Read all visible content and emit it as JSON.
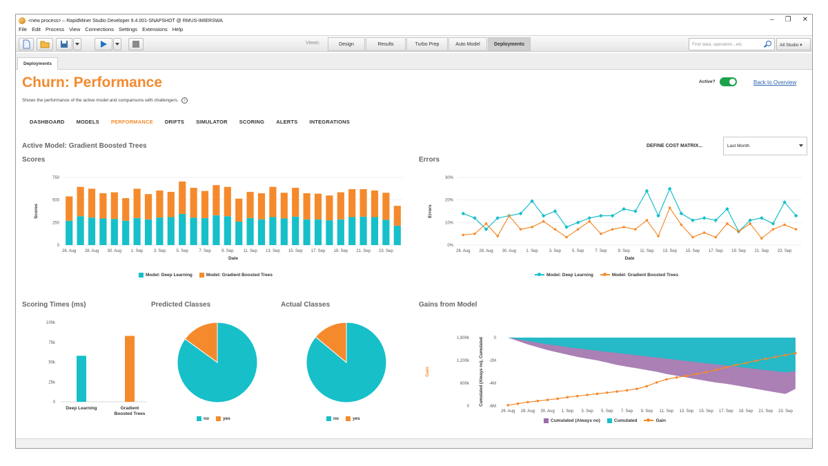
{
  "window": {
    "title": "<new process> – RapidMiner Studio Developer 9.4.001-SNAPSHOT @ RMUS-IMIERSWA",
    "controls": [
      "–",
      "❐",
      "✕"
    ]
  },
  "menu": [
    "File",
    "Edit",
    "Process",
    "View",
    "Connections",
    "Settings",
    "Extensions",
    "Help"
  ],
  "toolbar": {
    "views_label": "Views:",
    "views": [
      "Design",
      "Results",
      "Turbo Prep",
      "Auto Model",
      "Deployments"
    ],
    "active_view": "Deployments",
    "search_placeholder": "Find data, operators...etc",
    "studio_dropdown": "All Studio ▾"
  },
  "doc_tab": "Deployments",
  "page": {
    "title": "Churn: Performance",
    "subtitle": "Shows the performance of the active model and comparisons with challengers.",
    "info": "i",
    "active_label": "Active?",
    "back_link": "Back to Overview",
    "nav": [
      "DASHBOARD",
      "MODELS",
      "PERFORMANCE",
      "DRIFTS",
      "SIMULATOR",
      "SCORING",
      "ALERTS",
      "INTEGRATIONS"
    ],
    "active_nav": "PERFORMANCE",
    "active_model": "Active Model: Gradient Boosted Trees",
    "cost_matrix": "DEFINE COST MATRIX...",
    "period": "Last Month"
  },
  "colors": {
    "teal": "#17bfc9",
    "orange": "#f58a2c",
    "purple": "#9b6aa8",
    "brand": "#f28a2f",
    "link": "#2a66b2",
    "toggle": "#1aa34a"
  },
  "chart_data": [
    {
      "id": "scores",
      "type": "bar",
      "stacked": true,
      "title": "Scores",
      "xlabel": "Date",
      "ylabel": "Scores",
      "ylim": [
        0,
        750
      ],
      "yticks": [
        "0",
        "250",
        "500",
        "750"
      ],
      "xticks": [
        "26. Aug",
        "28. Aug",
        "30. Aug",
        "1. Sep",
        "3. Sep",
        "5. Sep",
        "7. Sep",
        "9. Sep",
        "11. Sep",
        "13. Sep",
        "15. Sep",
        "17. Sep",
        "19. Sep",
        "21. Sep",
        "23. Sep"
      ],
      "series": [
        {
          "name": "Model: Deep Learning",
          "color": "#17bfc9",
          "values": [
            270,
            320,
            305,
            295,
            290,
            270,
            300,
            285,
            305,
            310,
            345,
            305,
            300,
            330,
            320,
            260,
            300,
            285,
            310,
            295,
            315,
            285,
            285,
            275,
            285,
            310,
            315,
            310,
            280,
            215
          ]
        },
        {
          "name": "Model: Gradient Boosted Trees",
          "color": "#f58a2c",
          "values": [
            270,
            325,
            320,
            280,
            295,
            250,
            325,
            280,
            300,
            280,
            360,
            330,
            300,
            335,
            325,
            255,
            290,
            290,
            335,
            285,
            320,
            290,
            285,
            275,
            300,
            310,
            305,
            295,
            300,
            220
          ]
        }
      ],
      "legend": "bottom-center"
    },
    {
      "id": "errors",
      "type": "line",
      "title": "Errors",
      "xlabel": "Date",
      "ylabel": "Errors",
      "ylim": [
        0,
        30
      ],
      "yticks": [
        "0%",
        "10%",
        "20%",
        "30%"
      ],
      "xticks": [
        "26. Aug",
        "28. Aug",
        "30. Aug",
        "1. Sep",
        "3. Sep",
        "5. Sep",
        "7. Sep",
        "9. Sep",
        "11. Sep",
        "13. Sep",
        "15. Sep",
        "17. Sep",
        "19. Sep",
        "21. Sep",
        "23. Sep"
      ],
      "series": [
        {
          "name": "Model: Deep Learning",
          "color": "#17bfc9",
          "values": [
            14,
            12,
            7,
            12,
            13,
            14,
            19.5,
            13,
            15,
            8,
            10,
            12,
            13,
            13,
            16,
            15,
            24,
            13,
            25,
            14,
            11,
            12,
            11,
            16,
            6,
            11,
            12,
            9.5,
            19,
            13
          ]
        },
        {
          "name": "Model: Gradient Boosted Trees",
          "color": "#f58a2c",
          "values": [
            4.5,
            5,
            9.5,
            4,
            13,
            7,
            8,
            10.5,
            7,
            3.5,
            7,
            10.5,
            5,
            7,
            8,
            7,
            11,
            4,
            16.5,
            9,
            3.5,
            5.5,
            3.5,
            9.5,
            6,
            9.5,
            3,
            7,
            9,
            7
          ]
        }
      ],
      "legend": "bottom-center"
    },
    {
      "id": "scoring-times",
      "type": "bar",
      "title": "Scoring Times (ms)",
      "ylim": [
        0,
        100000
      ],
      "yticks": [
        "0",
        "25k",
        "50k",
        "75k",
        "100k"
      ],
      "categories": [
        "Deep Learning",
        "Gradient Boosted Trees"
      ],
      "values": [
        58000,
        83000
      ],
      "colors": [
        "#17bfc9",
        "#f58a2c"
      ]
    },
    {
      "id": "predicted-classes",
      "type": "pie",
      "title": "Predicted Classes",
      "labels": [
        "no",
        "yes"
      ],
      "values": [
        85,
        15
      ],
      "colors": [
        "#17bfc9",
        "#f58a2c"
      ],
      "legend": "bottom-center"
    },
    {
      "id": "actual-classes",
      "type": "pie",
      "title": "Actual Classes",
      "labels": [
        "no",
        "yes"
      ],
      "values": [
        86,
        14
      ],
      "colors": [
        "#17bfc9",
        "#f58a2c"
      ],
      "legend": "bottom-center"
    },
    {
      "id": "gains",
      "type": "area",
      "title": "Gains from Model",
      "xlabel": "Date",
      "ylabel_left": "Gain",
      "ylabel_right": "Cumulated (Always no), Cumulated",
      "left_ylim": [
        0,
        1800000
      ],
      "left_yticks": [
        "0",
        "600k",
        "1,200k",
        "1,800k"
      ],
      "right_ylim": [
        -6000000,
        0
      ],
      "right_yticks": [
        "-6M",
        "-4M",
        "-2M",
        "0"
      ],
      "xticks": [
        "26. Aug",
        "28. Aug",
        "30. Aug",
        "1. Sep",
        "3. Sep",
        "5. Sep",
        "7. Sep",
        "9. Sep",
        "11. Sep",
        "13. Sep",
        "15. Sep",
        "17. Sep",
        "19. Sep",
        "21. Sep",
        "23. Sep"
      ],
      "series": [
        {
          "name": "Cumulated (Always no)",
          "color": "#9b6aa8",
          "values": [
            0,
            -300000,
            -600000,
            -850000,
            -1100000,
            -1300000,
            -1500000,
            -1700000,
            -1850000,
            -2000000,
            -2200000,
            -2400000,
            -2550000,
            -2700000,
            -2850000,
            -3000000,
            -3200000,
            -3350000,
            -3500000,
            -3650000,
            -3800000,
            -3950000,
            -4050000,
            -4200000,
            -4350000,
            -4500000,
            -4650000,
            -4800000,
            -4950000,
            -4500000
          ]
        },
        {
          "name": "Cumulated",
          "color": "#17bfc9",
          "values": [
            0,
            -150000,
            -300000,
            -450000,
            -600000,
            -700000,
            -850000,
            -950000,
            -1050000,
            -1150000,
            -1250000,
            -1350000,
            -1450000,
            -1550000,
            -1650000,
            -1750000,
            -1850000,
            -1950000,
            -2050000,
            -2150000,
            -2250000,
            -2350000,
            -2450000,
            -2550000,
            -2650000,
            -2750000,
            -2850000,
            -2950000,
            -3050000,
            -2950000
          ]
        },
        {
          "name": "Gain",
          "color": "#f58a2c",
          "values": [
            20000,
            60000,
            100000,
            130000,
            160000,
            190000,
            230000,
            260000,
            290000,
            320000,
            350000,
            380000,
            410000,
            450000,
            520000,
            620000,
            700000,
            750000,
            790000,
            840000,
            890000,
            950000,
            1020000,
            1080000,
            1130000,
            1190000,
            1240000,
            1290000,
            1340000,
            1390000
          ]
        }
      ],
      "legend": "bottom-center"
    }
  ]
}
